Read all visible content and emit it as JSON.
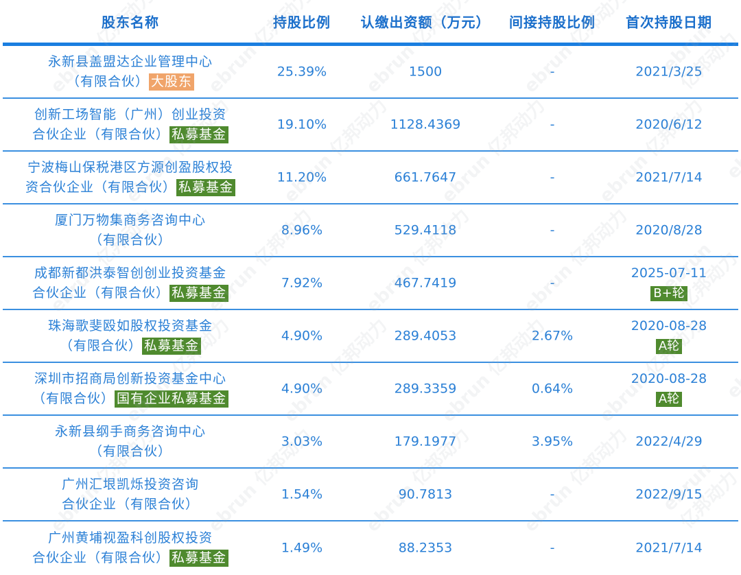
{
  "header": {
    "columns": [
      "股东名称",
      "持股比例",
      "认缴出资额（万元）",
      "间接持股比例",
      "首次持股日期"
    ]
  },
  "colors": {
    "text": "#2b80d6",
    "header_text": "#1b6fcb",
    "rule": "#1a7ee0",
    "tag_green": "#4f8a2e",
    "tag_orange": "#f0a46a"
  },
  "watermark": "ebrun 亿邦动力",
  "rows": [
    {
      "name_line1": "永新县盖盟达企业管理中心",
      "name_line2": "（有限合伙）",
      "tag": "大股东",
      "tag_color": "orange",
      "share": "25.39%",
      "capital": "1500",
      "indirect": "-",
      "date": "2021/3/25",
      "round": ""
    },
    {
      "name_line1": "创新工场智能（广州）创业投资",
      "name_line2": "合伙企业（有限合伙）",
      "tag": "私募基金",
      "tag_color": "green",
      "share": "19.10%",
      "capital": "1128.4369",
      "indirect": "-",
      "date": "2020/6/12",
      "round": ""
    },
    {
      "name_line1": "宁波梅山保税港区方源创盈股权投",
      "name_line2": "资合伙企业（有限合伙）",
      "tag": "私募基金",
      "tag_color": "green",
      "share": "11.20%",
      "capital": "661.7647",
      "indirect": "-",
      "date": "2021/7/14",
      "round": ""
    },
    {
      "name_line1": "厦门万物集商务咨询中心",
      "name_line2": "（有限合伙）",
      "tag": "",
      "tag_color": "",
      "share": "8.96%",
      "capital": "529.4118",
      "indirect": "-",
      "date": "2020/8/28",
      "round": ""
    },
    {
      "name_line1": "成都新都洪泰智创创业投资基金",
      "name_line2": "合伙企业（有限合伙）",
      "tag": "私募基金",
      "tag_color": "green",
      "share": "7.92%",
      "capital": "467.7419",
      "indirect": "-",
      "date": "2025-07-11",
      "round": "B+轮"
    },
    {
      "name_line1": "珠海歌斐殴如股权投资基金",
      "name_line2": "（有限合伙）",
      "tag": "私募基金",
      "tag_color": "green",
      "share": "4.90%",
      "capital": "289.4053",
      "indirect": "2.67%",
      "date": "2020-08-28",
      "round": "A轮"
    },
    {
      "name_line1": "深圳市招商局创新投资基金中心",
      "name_line2": "（有限合伙）",
      "tag": "国有企业私募基金",
      "tag_color": "green",
      "share": "4.90%",
      "capital": "289.3359",
      "indirect": "0.64%",
      "date": "2020-08-28",
      "round": "A轮"
    },
    {
      "name_line1": "永新县纲手商务咨询中心",
      "name_line2": "（有限合伙）",
      "tag": "",
      "tag_color": "",
      "share": "3.03%",
      "capital": "179.1977",
      "indirect": "3.95%",
      "date": "2022/4/29",
      "round": ""
    },
    {
      "name_line1": "广州汇垠凯烁投资咨询",
      "name_line2": "合伙企业（有限合伙）",
      "tag": "",
      "tag_color": "",
      "share": "1.54%",
      "capital": "90.7813",
      "indirect": "-",
      "date": "2022/9/15",
      "round": ""
    },
    {
      "name_line1": "广州黄埔视盈科创股权投资",
      "name_line2": "合伙企业（有限合伙）",
      "tag": "私募基金",
      "tag_color": "green",
      "share": "1.49%",
      "capital": "88.2353",
      "indirect": "-",
      "date": "2021/7/14",
      "round": ""
    }
  ]
}
